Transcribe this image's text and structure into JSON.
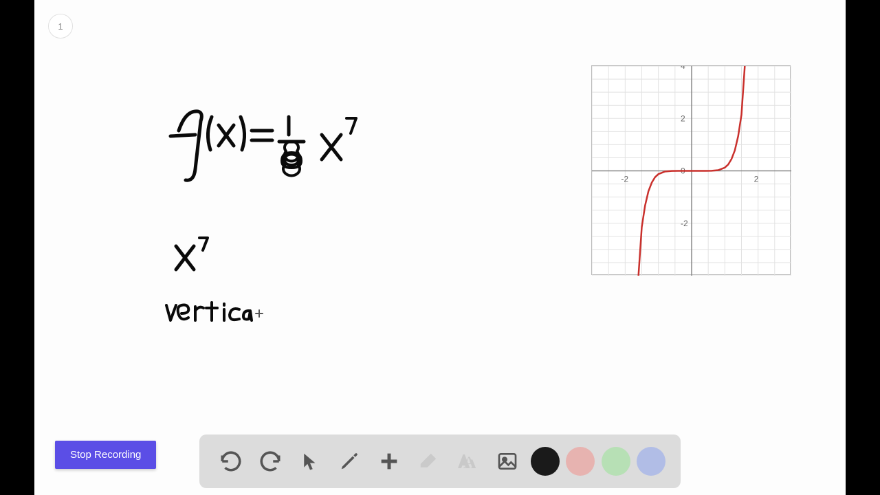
{
  "page": {
    "number": "1"
  },
  "handwriting": {
    "formula_main": "f(x) = 1/8 · x⁷",
    "formula_sub": "x⁷",
    "note": "vertical",
    "stroke_color": "#0a0a0a",
    "stroke_width": 5
  },
  "graph": {
    "type": "line",
    "x_axis": {
      "min": -3,
      "max": 3,
      "ticks": [
        -2,
        0,
        2
      ],
      "labels": [
        "-2",
        "0",
        "2"
      ]
    },
    "y_axis": {
      "min": -4,
      "max": 4,
      "ticks": [
        -2,
        0,
        2,
        4
      ],
      "labels": [
        "-2",
        "0",
        "2",
        "4"
      ]
    },
    "grid_color": "#e2e2e2",
    "axis_color": "#888888",
    "background_color": "#ffffff",
    "curve": {
      "color": "#c9302c",
      "width": 2.5,
      "function": "1/8 * x^7",
      "points": [
        [
          -1.6,
          -4
        ],
        [
          -1.5,
          -2.14
        ],
        [
          -1.4,
          -1.32
        ],
        [
          -1.3,
          -0.78
        ],
        [
          -1.2,
          -0.45
        ],
        [
          -1.1,
          -0.24
        ],
        [
          -1.0,
          -0.125
        ],
        [
          -0.8,
          -0.026
        ],
        [
          -0.6,
          -0.0035
        ],
        [
          -0.4,
          -0.0002
        ],
        [
          0,
          0
        ],
        [
          0.4,
          0.0002
        ],
        [
          0.6,
          0.0035
        ],
        [
          0.8,
          0.026
        ],
        [
          1.0,
          0.125
        ],
        [
          1.1,
          0.24
        ],
        [
          1.2,
          0.45
        ],
        [
          1.3,
          0.78
        ],
        [
          1.4,
          1.32
        ],
        [
          1.5,
          2.14
        ],
        [
          1.6,
          4
        ]
      ]
    },
    "tick_fontsize": 12,
    "tick_color": "#666666"
  },
  "controls": {
    "stop_label": "Stop Recording"
  },
  "toolbar": {
    "background": "#dcdcdc",
    "tools": [
      {
        "name": "undo",
        "interactable": true
      },
      {
        "name": "redo",
        "interactable": true
      },
      {
        "name": "pointer",
        "interactable": true
      },
      {
        "name": "pen",
        "interactable": true
      },
      {
        "name": "add",
        "interactable": true
      },
      {
        "name": "eraser",
        "interactable": false
      },
      {
        "name": "text",
        "interactable": false
      },
      {
        "name": "image",
        "interactable": true
      }
    ],
    "colors": [
      {
        "name": "black",
        "hex": "#1a1a1a",
        "selected": true
      },
      {
        "name": "red",
        "hex": "#e7b3b0"
      },
      {
        "name": "green",
        "hex": "#b7e0b5"
      },
      {
        "name": "blue",
        "hex": "#b1bde6"
      }
    ]
  }
}
